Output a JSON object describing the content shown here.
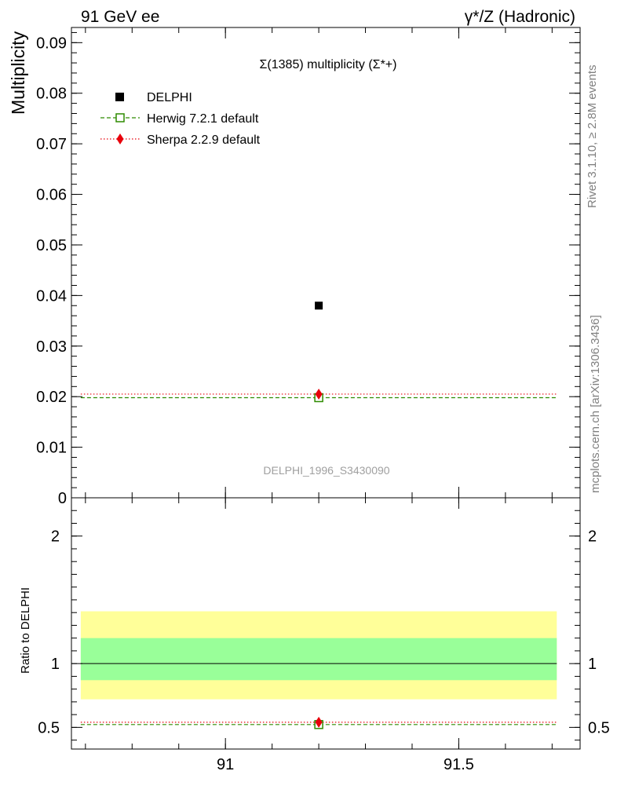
{
  "header": {
    "left": "91 GeV ee",
    "right": "γ*/Z (Hadronic)"
  },
  "side_labels": {
    "rivet": "Rivet 3.1.10, ≥ 2.8M events",
    "mcplots": "mcplots.cern.ch [arXiv:1306.3436]"
  },
  "watermark": "DELPHI_1996_S3430090",
  "colors": {
    "delphi": "#000000",
    "herwig": "#2e8b00",
    "sherpa": "#e8000b",
    "band_inner": "#99ff99",
    "band_outer": "#ffff99"
  },
  "chart_data": [
    {
      "type": "scatter",
      "title": "Σ(1385) multiplicity (Σ*+)",
      "ylabel": "Multiplicity",
      "xlim": [
        90.67,
        91.76
      ],
      "ylim": [
        0,
        0.093
      ],
      "xticks": [
        91,
        91.5
      ],
      "xtick_labels": [
        "91",
        "91.5"
      ],
      "yticks": [
        0,
        0.01,
        0.02,
        0.03,
        0.04,
        0.05,
        0.06,
        0.07,
        0.08,
        0.09
      ],
      "ytick_labels": [
        "0",
        "0.01",
        "0.02",
        "0.03",
        "0.04",
        "0.05",
        "0.06",
        "0.07",
        "0.08",
        "0.09"
      ],
      "legend": "top-left",
      "series": [
        {
          "name": "DELPHI",
          "kind": "data",
          "x": [
            91.2
          ],
          "y": [
            0.038
          ]
        },
        {
          "name": "Herwig 7.2.1 default",
          "kind": "mc-dashed",
          "x_range": [
            90.69,
            91.71
          ],
          "x": [
            91.2
          ],
          "y": [
            0.0198
          ]
        },
        {
          "name": "Sherpa 2.2.9 default",
          "kind": "mc-dotted",
          "x_range": [
            90.69,
            91.71
          ],
          "x": [
            91.2
          ],
          "y": [
            0.0205
          ]
        }
      ]
    },
    {
      "type": "scatter",
      "ylabel": "Ratio to DELPHI",
      "xlim": [
        90.67,
        91.76
      ],
      "ylim": [
        0.33,
        2.3
      ],
      "yticks": [
        0.5,
        1,
        2
      ],
      "ytick_labels": [
        "0.5",
        "1",
        "2"
      ],
      "bands": {
        "x_range": [
          90.69,
          91.71
        ],
        "inner": [
          0.87,
          1.2
        ],
        "outer": [
          0.72,
          1.41
        ]
      },
      "reference_line": 1,
      "series": [
        {
          "name": "Herwig 7.2.1 default",
          "x": [
            91.2
          ],
          "y": [
            0.522
          ]
        },
        {
          "name": "Sherpa 2.2.9 default",
          "x": [
            91.2
          ],
          "y": [
            0.54
          ]
        }
      ]
    }
  ]
}
